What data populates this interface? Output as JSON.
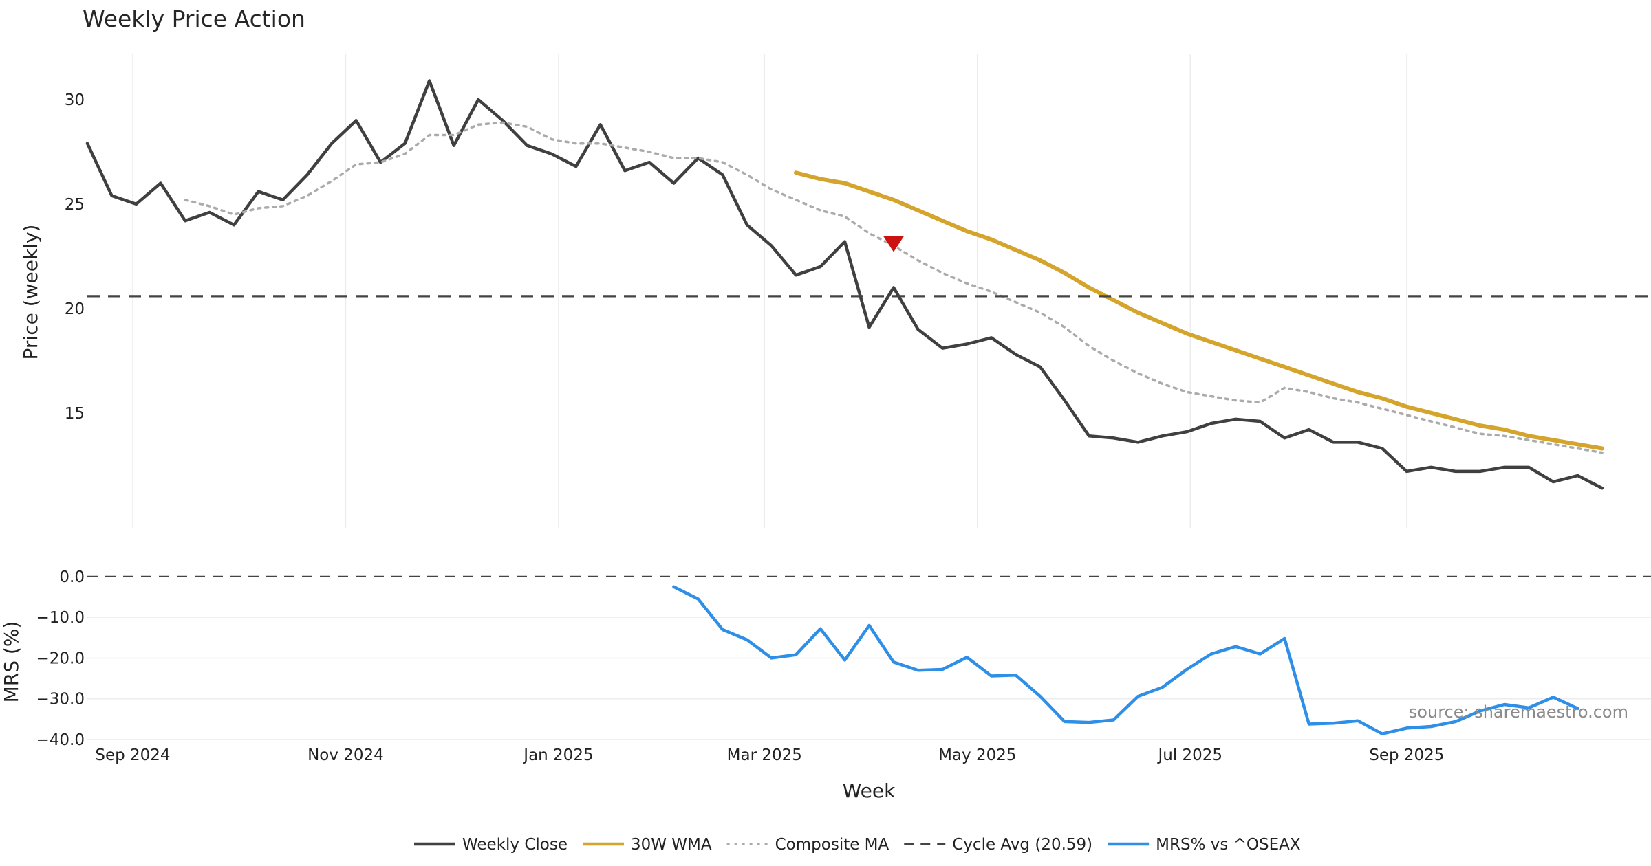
{
  "chart_data": {
    "type": "line",
    "title": "Weekly Price Action",
    "xlabel": "Week",
    "source_note": "source: sharemaestro.com",
    "x_ticks": [
      "Sep 2024",
      "Nov 2024",
      "Jan 2025",
      "Mar 2025",
      "May 2025",
      "Jul 2025",
      "Sep 2025"
    ],
    "x_range": [
      "2024-08-19",
      "2025-11-10"
    ],
    "price_panel": {
      "ylabel": "Price (weekly)",
      "ylim": [
        9.5,
        32.2
      ],
      "y_ticks": [
        15,
        20,
        25,
        30
      ],
      "series": [
        {
          "name": "Weekly Close",
          "color": "#404040",
          "style": "solid",
          "values": [
            {
              "x": "2024-08-19",
              "y": 27.9
            },
            {
              "x": "2024-08-26",
              "y": 25.4
            },
            {
              "x": "2024-09-02",
              "y": 25.0
            },
            {
              "x": "2024-09-09",
              "y": 26.0
            },
            {
              "x": "2024-09-16",
              "y": 24.2
            },
            {
              "x": "2024-09-23",
              "y": 24.6
            },
            {
              "x": "2024-09-30",
              "y": 24.0
            },
            {
              "x": "2024-10-07",
              "y": 25.6
            },
            {
              "x": "2024-10-14",
              "y": 25.2
            },
            {
              "x": "2024-10-21",
              "y": 26.4
            },
            {
              "x": "2024-10-28",
              "y": 27.9
            },
            {
              "x": "2024-11-04",
              "y": 29.0
            },
            {
              "x": "2024-11-11",
              "y": 27.0
            },
            {
              "x": "2024-11-18",
              "y": 27.9
            },
            {
              "x": "2024-11-25",
              "y": 30.9
            },
            {
              "x": "2024-12-02",
              "y": 27.8
            },
            {
              "x": "2024-12-09",
              "y": 30.0
            },
            {
              "x": "2024-12-16",
              "y": 29.0
            },
            {
              "x": "2024-12-23",
              "y": 27.8
            },
            {
              "x": "2024-12-30",
              "y": 27.4
            },
            {
              "x": "2025-01-06",
              "y": 26.8
            },
            {
              "x": "2025-01-13",
              "y": 28.8
            },
            {
              "x": "2025-01-20",
              "y": 26.6
            },
            {
              "x": "2025-01-27",
              "y": 27.0
            },
            {
              "x": "2025-02-03",
              "y": 26.0
            },
            {
              "x": "2025-02-10",
              "y": 27.2
            },
            {
              "x": "2025-02-17",
              "y": 26.4
            },
            {
              "x": "2025-02-24",
              "y": 24.0
            },
            {
              "x": "2025-03-03",
              "y": 23.0
            },
            {
              "x": "2025-03-10",
              "y": 21.6
            },
            {
              "x": "2025-03-17",
              "y": 22.0
            },
            {
              "x": "2025-03-24",
              "y": 23.2
            },
            {
              "x": "2025-03-31",
              "y": 19.1
            },
            {
              "x": "2025-04-07",
              "y": 21.0
            },
            {
              "x": "2025-04-14",
              "y": 19.0
            },
            {
              "x": "2025-04-21",
              "y": 18.1
            },
            {
              "x": "2025-04-28",
              "y": 18.3
            },
            {
              "x": "2025-05-05",
              "y": 18.6
            },
            {
              "x": "2025-05-12",
              "y": 17.8
            },
            {
              "x": "2025-05-19",
              "y": 17.2
            },
            {
              "x": "2025-05-26",
              "y": 15.6
            },
            {
              "x": "2025-06-02",
              "y": 13.9
            },
            {
              "x": "2025-06-09",
              "y": 13.8
            },
            {
              "x": "2025-06-16",
              "y": 13.6
            },
            {
              "x": "2025-06-23",
              "y": 13.9
            },
            {
              "x": "2025-06-30",
              "y": 14.1
            },
            {
              "x": "2025-07-07",
              "y": 14.5
            },
            {
              "x": "2025-07-14",
              "y": 14.7
            },
            {
              "x": "2025-07-21",
              "y": 14.6
            },
            {
              "x": "2025-07-28",
              "y": 13.8
            },
            {
              "x": "2025-08-04",
              "y": 14.2
            },
            {
              "x": "2025-08-11",
              "y": 13.6
            },
            {
              "x": "2025-08-18",
              "y": 13.6
            },
            {
              "x": "2025-08-25",
              "y": 13.3
            },
            {
              "x": "2025-09-01",
              "y": 12.2
            },
            {
              "x": "2025-09-08",
              "y": 12.4
            },
            {
              "x": "2025-09-15",
              "y": 12.2
            },
            {
              "x": "2025-09-22",
              "y": 12.2
            },
            {
              "x": "2025-09-29",
              "y": 12.4
            },
            {
              "x": "2025-10-06",
              "y": 12.4
            },
            {
              "x": "2025-10-13",
              "y": 11.7
            },
            {
              "x": "2025-10-20",
              "y": 12.0
            },
            {
              "x": "2025-10-27",
              "y": 11.4
            }
          ]
        },
        {
          "name": "30W WMA",
          "color": "#d4a42c",
          "style": "solid",
          "values": [
            {
              "x": "2025-03-10",
              "y": 26.5
            },
            {
              "x": "2025-03-17",
              "y": 26.2
            },
            {
              "x": "2025-03-24",
              "y": 26.0
            },
            {
              "x": "2025-03-31",
              "y": 25.6
            },
            {
              "x": "2025-04-07",
              "y": 25.2
            },
            {
              "x": "2025-04-14",
              "y": 24.7
            },
            {
              "x": "2025-04-21",
              "y": 24.2
            },
            {
              "x": "2025-04-28",
              "y": 23.7
            },
            {
              "x": "2025-05-05",
              "y": 23.3
            },
            {
              "x": "2025-05-12",
              "y": 22.8
            },
            {
              "x": "2025-05-19",
              "y": 22.3
            },
            {
              "x": "2025-05-26",
              "y": 21.7
            },
            {
              "x": "2025-06-02",
              "y": 21.0
            },
            {
              "x": "2025-06-09",
              "y": 20.4
            },
            {
              "x": "2025-06-16",
              "y": 19.8
            },
            {
              "x": "2025-06-23",
              "y": 19.3
            },
            {
              "x": "2025-06-30",
              "y": 18.8
            },
            {
              "x": "2025-07-07",
              "y": 18.4
            },
            {
              "x": "2025-07-14",
              "y": 18.0
            },
            {
              "x": "2025-07-21",
              "y": 17.6
            },
            {
              "x": "2025-07-28",
              "y": 17.2
            },
            {
              "x": "2025-08-04",
              "y": 16.8
            },
            {
              "x": "2025-08-11",
              "y": 16.4
            },
            {
              "x": "2025-08-18",
              "y": 16.0
            },
            {
              "x": "2025-08-25",
              "y": 15.7
            },
            {
              "x": "2025-09-01",
              "y": 15.3
            },
            {
              "x": "2025-09-08",
              "y": 15.0
            },
            {
              "x": "2025-09-15",
              "y": 14.7
            },
            {
              "x": "2025-09-22",
              "y": 14.4
            },
            {
              "x": "2025-09-29",
              "y": 14.2
            },
            {
              "x": "2025-10-06",
              "y": 13.9
            },
            {
              "x": "2025-10-13",
              "y": 13.7
            },
            {
              "x": "2025-10-20",
              "y": 13.5
            },
            {
              "x": "2025-10-27",
              "y": 13.3
            }
          ]
        },
        {
          "name": "Composite MA",
          "color": "#ababab",
          "style": "dotted",
          "values": [
            {
              "x": "2024-09-16",
              "y": 25.2
            },
            {
              "x": "2024-09-23",
              "y": 24.9
            },
            {
              "x": "2024-09-30",
              "y": 24.5
            },
            {
              "x": "2024-10-07",
              "y": 24.8
            },
            {
              "x": "2024-10-14",
              "y": 24.9
            },
            {
              "x": "2024-10-21",
              "y": 25.4
            },
            {
              "x": "2024-10-28",
              "y": 26.1
            },
            {
              "x": "2024-11-04",
              "y": 26.9
            },
            {
              "x": "2024-11-11",
              "y": 27.0
            },
            {
              "x": "2024-11-18",
              "y": 27.4
            },
            {
              "x": "2024-11-25",
              "y": 28.3
            },
            {
              "x": "2024-12-02",
              "y": 28.3
            },
            {
              "x": "2024-12-09",
              "y": 28.8
            },
            {
              "x": "2024-12-16",
              "y": 28.9
            },
            {
              "x": "2024-12-23",
              "y": 28.7
            },
            {
              "x": "2024-12-30",
              "y": 28.1
            },
            {
              "x": "2025-01-06",
              "y": 27.9
            },
            {
              "x": "2025-01-13",
              "y": 27.9
            },
            {
              "x": "2025-01-20",
              "y": 27.7
            },
            {
              "x": "2025-01-27",
              "y": 27.5
            },
            {
              "x": "2025-02-03",
              "y": 27.2
            },
            {
              "x": "2025-02-10",
              "y": 27.2
            },
            {
              "x": "2025-02-17",
              "y": 27.0
            },
            {
              "x": "2025-02-24",
              "y": 26.4
            },
            {
              "x": "2025-03-03",
              "y": 25.7
            },
            {
              "x": "2025-03-10",
              "y": 25.2
            },
            {
              "x": "2025-03-17",
              "y": 24.7
            },
            {
              "x": "2025-03-24",
              "y": 24.4
            },
            {
              "x": "2025-03-31",
              "y": 23.6
            },
            {
              "x": "2025-04-07",
              "y": 23.0
            },
            {
              "x": "2025-04-14",
              "y": 22.3
            },
            {
              "x": "2025-04-21",
              "y": 21.7
            },
            {
              "x": "2025-04-28",
              "y": 21.2
            },
            {
              "x": "2025-05-05",
              "y": 20.8
            },
            {
              "x": "2025-05-12",
              "y": 20.3
            },
            {
              "x": "2025-05-19",
              "y": 19.8
            },
            {
              "x": "2025-05-26",
              "y": 19.1
            },
            {
              "x": "2025-06-02",
              "y": 18.2
            },
            {
              "x": "2025-06-09",
              "y": 17.5
            },
            {
              "x": "2025-06-16",
              "y": 16.9
            },
            {
              "x": "2025-06-23",
              "y": 16.4
            },
            {
              "x": "2025-06-30",
              "y": 16.0
            },
            {
              "x": "2025-07-07",
              "y": 15.8
            },
            {
              "x": "2025-07-14",
              "y": 15.6
            },
            {
              "x": "2025-07-21",
              "y": 15.5
            },
            {
              "x": "2025-07-28",
              "y": 16.2
            },
            {
              "x": "2025-08-04",
              "y": 16.0
            },
            {
              "x": "2025-08-11",
              "y": 15.7
            },
            {
              "x": "2025-08-18",
              "y": 15.5
            },
            {
              "x": "2025-08-25",
              "y": 15.2
            },
            {
              "x": "2025-09-01",
              "y": 14.9
            },
            {
              "x": "2025-09-08",
              "y": 14.6
            },
            {
              "x": "2025-09-15",
              "y": 14.3
            },
            {
              "x": "2025-09-22",
              "y": 14.0
            },
            {
              "x": "2025-09-29",
              "y": 13.9
            },
            {
              "x": "2025-10-06",
              "y": 13.7
            },
            {
              "x": "2025-10-13",
              "y": 13.5
            },
            {
              "x": "2025-10-20",
              "y": 13.3
            },
            {
              "x": "2025-10-27",
              "y": 13.1
            }
          ]
        },
        {
          "name": "Cycle Avg (20.59)",
          "color": "#444444",
          "style": "dashed",
          "value": 20.59
        }
      ],
      "annotations": [
        {
          "type": "down-triangle",
          "x": "2025-04-07",
          "y": 23.1,
          "color": "#cc1111"
        }
      ]
    },
    "mrs_panel": {
      "ylabel": "MRS (%)",
      "ylim": [
        -40.0,
        1.5
      ],
      "y_ticks": [
        "0.0",
        "−10.0",
        "−20.0",
        "−30.0",
        "−40.0"
      ],
      "y_tick_values": [
        0,
        -10,
        -20,
        -30,
        -40
      ],
      "zero_line": 0,
      "series": [
        {
          "name": "MRS% vs ^OSEAX",
          "color": "#2f8fe6",
          "values": [
            {
              "x": "2025-02-03",
              "y": -2.5
            },
            {
              "x": "2025-02-10",
              "y": -5.5
            },
            {
              "x": "2025-02-17",
              "y": -13.0
            },
            {
              "x": "2025-02-24",
              "y": -15.5
            },
            {
              "x": "2025-03-03",
              "y": -20.0
            },
            {
              "x": "2025-03-10",
              "y": -19.2
            },
            {
              "x": "2025-03-17",
              "y": -12.8
            },
            {
              "x": "2025-03-24",
              "y": -20.5
            },
            {
              "x": "2025-03-31",
              "y": -12.0
            },
            {
              "x": "2025-04-07",
              "y": -21.0
            },
            {
              "x": "2025-04-14",
              "y": -23.0
            },
            {
              "x": "2025-04-21",
              "y": -22.8
            },
            {
              "x": "2025-04-28",
              "y": -19.8
            },
            {
              "x": "2025-05-05",
              "y": -24.4
            },
            {
              "x": "2025-05-12",
              "y": -24.2
            },
            {
              "x": "2025-05-19",
              "y": -29.4
            },
            {
              "x": "2025-05-26",
              "y": -35.6
            },
            {
              "x": "2025-06-02",
              "y": -35.8
            },
            {
              "x": "2025-06-09",
              "y": -35.2
            },
            {
              "x": "2025-06-16",
              "y": -29.4
            },
            {
              "x": "2025-06-23",
              "y": -27.2
            },
            {
              "x": "2025-06-30",
              "y": -22.8
            },
            {
              "x": "2025-07-07",
              "y": -19.0
            },
            {
              "x": "2025-07-14",
              "y": -17.2
            },
            {
              "x": "2025-07-21",
              "y": -19.0
            },
            {
              "x": "2025-07-28",
              "y": -15.2
            },
            {
              "x": "2025-08-04",
              "y": -36.2
            },
            {
              "x": "2025-08-11",
              "y": -36.0
            },
            {
              "x": "2025-08-18",
              "y": -35.4
            },
            {
              "x": "2025-08-25",
              "y": -38.6
            },
            {
              "x": "2025-09-01",
              "y": -37.2
            },
            {
              "x": "2025-09-08",
              "y": -36.8
            },
            {
              "x": "2025-09-15",
              "y": -35.6
            },
            {
              "x": "2025-09-22",
              "y": -33.0
            },
            {
              "x": "2025-09-29",
              "y": -31.4
            },
            {
              "x": "2025-10-06",
              "y": -32.2
            },
            {
              "x": "2025-10-13",
              "y": -29.6
            },
            {
              "x": "2025-10-20",
              "y": -32.4
            }
          ]
        }
      ]
    },
    "legend": {
      "placement": "bottom-center",
      "items": [
        {
          "label": "Weekly Close",
          "color": "#404040",
          "style": "solid"
        },
        {
          "label": "30W WMA",
          "color": "#d4a42c",
          "style": "solid"
        },
        {
          "label": "Composite MA",
          "color": "#ababab",
          "style": "dotted"
        },
        {
          "label": "Cycle Avg (20.59)",
          "color": "#444444",
          "style": "dashed"
        },
        {
          "label": "MRS% vs ^OSEAX",
          "color": "#2f8fe6",
          "style": "solid"
        }
      ]
    }
  }
}
